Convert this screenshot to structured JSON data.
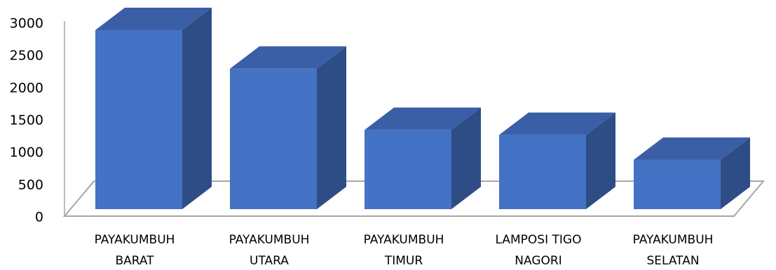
{
  "chart_data": {
    "type": "bar",
    "style": "3d-column",
    "categories": [
      [
        "PAYAKUMBUH",
        "BARAT"
      ],
      [
        "PAYAKUMBUH",
        "UTARA"
      ],
      [
        "PAYAKUMBUH",
        "TIMUR"
      ],
      [
        "LAMPOSI TIGO",
        "NAGORI"
      ],
      [
        "PAYAKUMBUH",
        "SELATAN"
      ]
    ],
    "values": [
      2870,
      2250,
      1270,
      1190,
      790
    ],
    "yticks": [
      "0",
      "500",
      "1000",
      "1500",
      "2000",
      "2500",
      "3000"
    ],
    "ylim": [
      0,
      3000
    ],
    "grid": false,
    "legend": "none",
    "colors": {
      "front": "#4472C4",
      "side": "#2E4D86",
      "top": "#3A5FA6",
      "floor": "#A6A6A6"
    }
  }
}
